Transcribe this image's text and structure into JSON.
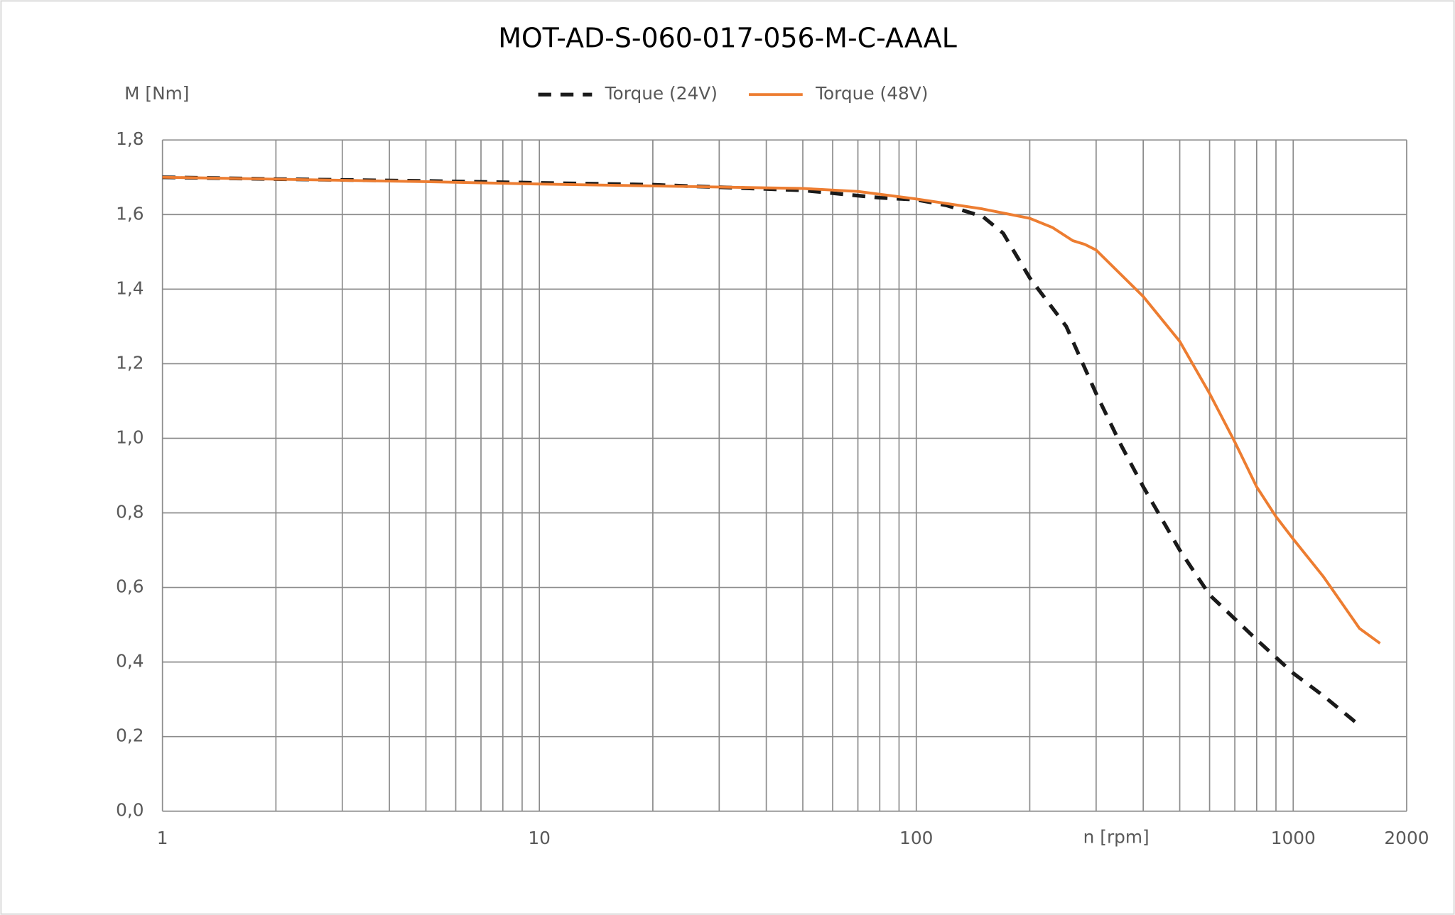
{
  "chart_data": {
    "type": "line",
    "title": "MOT-AD-S-060-017-056-M-C-AAAL",
    "y_label": "M [Nm]",
    "x_label": "n [rpm]",
    "xscale": "log",
    "xlim": [
      1,
      2000
    ],
    "xticks": [
      1,
      10,
      100,
      1000,
      2000
    ],
    "xminorticks": [
      2,
      3,
      4,
      5,
      6,
      7,
      8,
      9,
      20,
      30,
      40,
      50,
      60,
      70,
      80,
      90,
      200,
      300,
      400,
      500,
      600,
      700,
      800,
      900
    ],
    "ylim": [
      0,
      1.8
    ],
    "yticks": [
      {
        "value": 0,
        "label": "0,0"
      },
      {
        "value": 0.2,
        "label": "0,2"
      },
      {
        "value": 0.4,
        "label": "0,4"
      },
      {
        "value": 0.6,
        "label": "0,6"
      },
      {
        "value": 0.8,
        "label": "0,8"
      },
      {
        "value": 1.0,
        "label": "1,0"
      },
      {
        "value": 1.2,
        "label": "1,2"
      },
      {
        "value": 1.4,
        "label": "1,4"
      },
      {
        "value": 1.6,
        "label": "1,6"
      },
      {
        "value": 1.8,
        "label": "1,8"
      }
    ],
    "grid": true,
    "legend": "top",
    "series": [
      {
        "name": "Torque (24V)",
        "color": "#1a1a1a",
        "dash": true,
        "x": [
          1,
          2,
          5,
          10,
          20,
          50,
          80,
          100,
          120,
          150,
          170,
          200,
          250,
          300,
          350,
          400,
          500,
          600,
          800,
          1000,
          1200,
          1500
        ],
        "values": [
          1.7,
          1.695,
          1.69,
          1.685,
          1.68,
          1.665,
          1.645,
          1.64,
          1.625,
          1.595,
          1.55,
          1.43,
          1.3,
          1.12,
          0.98,
          0.87,
          0.7,
          0.58,
          0.46,
          0.37,
          0.31,
          0.23
        ]
      },
      {
        "name": "Torque (48V)",
        "color": "#ed7d31",
        "dash": false,
        "x": [
          1,
          5,
          10,
          50,
          70,
          100,
          150,
          200,
          230,
          260,
          280,
          300,
          400,
          500,
          600,
          700,
          800,
          900,
          1000,
          1200,
          1500,
          1700
        ],
        "values": [
          1.7,
          1.688,
          1.682,
          1.67,
          1.662,
          1.642,
          1.615,
          1.59,
          1.565,
          1.53,
          1.52,
          1.505,
          1.38,
          1.26,
          1.12,
          0.99,
          0.87,
          0.79,
          0.73,
          0.63,
          0.49,
          0.45
        ]
      }
    ]
  }
}
